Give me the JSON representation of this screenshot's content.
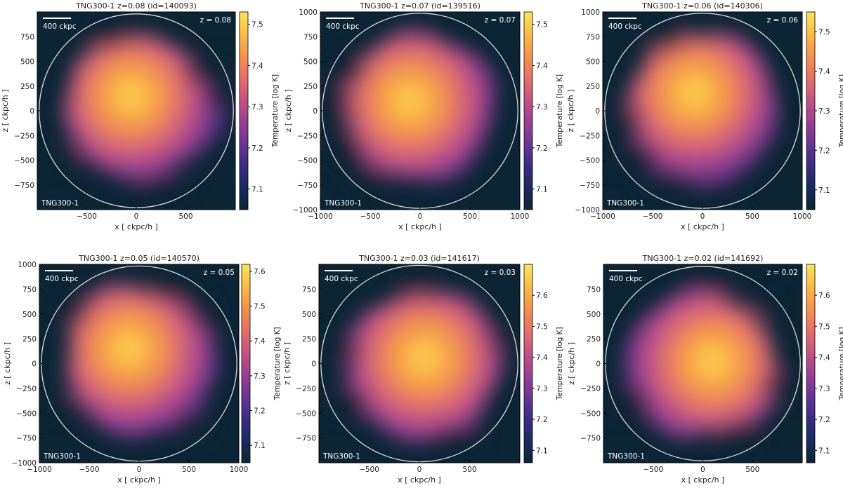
{
  "figure": {
    "xlabel": "x [ ckpc/h ]",
    "ylabel": "z [ ckpc/h ]",
    "colorbar_label": "Temperature [log K]",
    "scale_bar_label": "400 ckpc",
    "sim_label": "TNG300-1",
    "colormap": [
      "#0b2535",
      "#1a2a5e",
      "#3a2c86",
      "#6a3596",
      "#9a3f93",
      "#c65383",
      "#e86f66",
      "#f6924b",
      "#fbbb46",
      "#f7e55a"
    ]
  },
  "chart_data": [
    {
      "type": "heatmap",
      "title": "TNG300-1 z=0.08 (id=140093)",
      "redshift_label": "z = 0.08",
      "xlim": [
        -1000,
        1000
      ],
      "ylim": [
        -1000,
        1000
      ],
      "xticks": [
        -500,
        0,
        500
      ],
      "yticks": [
        -750,
        -500,
        -250,
        0,
        250,
        500,
        750
      ],
      "colorbar_range": [
        7.05,
        7.53
      ],
      "colorbar_ticks": [
        7.1,
        7.2,
        7.3,
        7.4,
        7.5
      ],
      "circle_radius": 980,
      "hot_center": [
        -50,
        150
      ]
    },
    {
      "type": "heatmap",
      "title": "TNG300-1 z=0.07 (id=139516)",
      "redshift_label": "z = 0.07",
      "xlim": [
        -1000,
        1000
      ],
      "ylim": [
        -1000,
        1000
      ],
      "xticks": [
        -1000,
        -500,
        0,
        500,
        1000
      ],
      "yticks": [
        -1000,
        -750,
        -500,
        -250,
        0,
        250,
        500,
        750,
        1000
      ],
      "colorbar_range": [
        7.05,
        7.53
      ],
      "colorbar_ticks": [
        7.1,
        7.2,
        7.3,
        7.4,
        7.5
      ],
      "circle_radius": 980,
      "hot_center": [
        -100,
        100
      ]
    },
    {
      "type": "heatmap",
      "title": "TNG300-1 z=0.06 (id=140306)",
      "redshift_label": "z = 0.06",
      "xlim": [
        -1000,
        1000
      ],
      "ylim": [
        -1000,
        1000
      ],
      "xticks": [
        -1000,
        -500,
        0,
        500,
        1000
      ],
      "yticks": [
        -1000,
        -750,
        -500,
        -250,
        0,
        250,
        500,
        750,
        1000
      ],
      "colorbar_range": [
        7.05,
        7.55
      ],
      "colorbar_ticks": [
        7.1,
        7.2,
        7.3,
        7.4,
        7.5
      ],
      "circle_radius": 980,
      "hot_center": [
        -80,
        180
      ]
    },
    {
      "type": "heatmap",
      "title": "TNG300-1 z=0.05 (id=140570)",
      "redshift_label": "z = 0.05",
      "xlim": [
        -1000,
        1000
      ],
      "ylim": [
        -1000,
        1000
      ],
      "xticks": [
        -1000,
        -500,
        0,
        500,
        1000
      ],
      "yticks": [
        -1000,
        -750,
        -500,
        -250,
        0,
        250,
        500,
        750,
        1000
      ],
      "colorbar_range": [
        7.05,
        7.62
      ],
      "colorbar_ticks": [
        7.1,
        7.2,
        7.3,
        7.4,
        7.5,
        7.6
      ],
      "circle_radius": 980,
      "hot_center": [
        -100,
        150
      ]
    },
    {
      "type": "heatmap",
      "title": "TNG300-1 z=0.03 (id=141617)",
      "redshift_label": "z = 0.03",
      "xlim": [
        -1000,
        1000
      ],
      "ylim": [
        -1000,
        1000
      ],
      "xticks": [
        -500,
        0,
        500
      ],
      "yticks": [
        -750,
        -500,
        -250,
        0,
        250,
        500,
        750
      ],
      "colorbar_range": [
        7.06,
        7.7
      ],
      "colorbar_ticks": [
        7.1,
        7.2,
        7.3,
        7.4,
        7.5,
        7.6
      ],
      "circle_radius": 980,
      "hot_center": [
        50,
        60
      ]
    },
    {
      "type": "heatmap",
      "title": "TNG300-1 z=0.02 (id=141692)",
      "redshift_label": "z = 0.02",
      "xlim": [
        -1000,
        1000
      ],
      "ylim": [
        -1000,
        1000
      ],
      "xticks": [
        -500,
        0,
        500
      ],
      "yticks": [
        -750,
        -500,
        -250,
        0,
        250,
        500,
        750
      ],
      "colorbar_range": [
        7.06,
        7.7
      ],
      "colorbar_ticks": [
        7.1,
        7.2,
        7.3,
        7.4,
        7.5,
        7.6
      ],
      "circle_radius": 980,
      "hot_center": [
        100,
        20
      ]
    }
  ]
}
